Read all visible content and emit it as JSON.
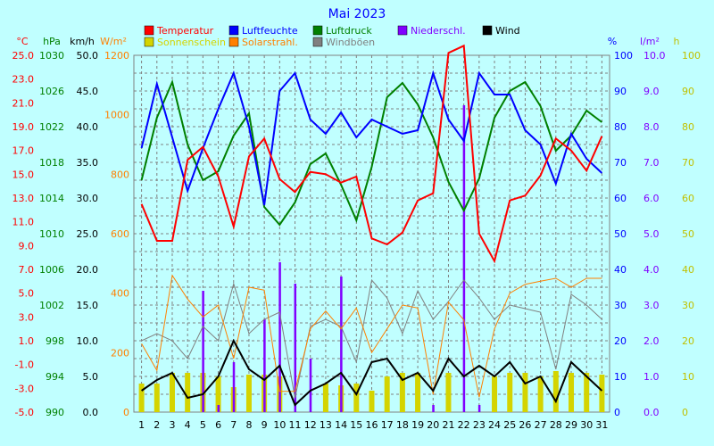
{
  "chart_data": {
    "type": "line",
    "title": "Mai 2023",
    "x": [
      1,
      2,
      3,
      4,
      5,
      6,
      7,
      8,
      9,
      10,
      11,
      12,
      13,
      14,
      15,
      16,
      17,
      18,
      19,
      20,
      21,
      22,
      23,
      24,
      25,
      26,
      27,
      28,
      29,
      30,
      31
    ],
    "x_ticks": [
      "1",
      "2",
      "3",
      "4",
      "5",
      "6",
      "7",
      "8",
      "9",
      "10",
      "11",
      "12",
      "13",
      "14",
      "15",
      "16",
      "17",
      "18",
      "19",
      "20",
      "21",
      "22",
      "23",
      "24",
      "25",
      "26",
      "27",
      "28",
      "29",
      "30",
      "31"
    ],
    "grid": true,
    "legend_position": "top",
    "axes": [
      {
        "key": "temp",
        "label": "°C",
        "min": -5,
        "max": 25,
        "ticks": [
          "-5.0",
          "-3.0",
          "-1.0",
          "1.0",
          "3.0",
          "5.0",
          "7.0",
          "9.0",
          "11.0",
          "13.0",
          "15.0",
          "17.0",
          "19.0",
          "21.0",
          "23.0",
          "25.0"
        ],
        "color": "#ff0000"
      },
      {
        "key": "pressure",
        "label": "hPa",
        "min": 990,
        "max": 1030,
        "ticks": [
          "990",
          "994",
          "998",
          "1002",
          "1006",
          "1010",
          "1014",
          "1018",
          "1022",
          "1026",
          "1030"
        ],
        "color": "#008000"
      },
      {
        "key": "wind",
        "label": "km/h",
        "min": 0,
        "max": 50,
        "ticks": [
          "0.0",
          "5.0",
          "10.0",
          "15.0",
          "20.0",
          "25.0",
          "30.0",
          "35.0",
          "40.0",
          "45.0",
          "50.0"
        ],
        "color": "#000000"
      },
      {
        "key": "solar",
        "label": "W/m²",
        "min": 0,
        "max": 1200,
        "ticks": [
          "0",
          "200",
          "400",
          "600",
          "800",
          "1000",
          "1200"
        ],
        "color": "#ff8000"
      },
      {
        "key": "humidity",
        "label": "%",
        "min": 0,
        "max": 100,
        "ticks": [
          "0",
          "10",
          "20",
          "30",
          "40",
          "50",
          "60",
          "70",
          "80",
          "90",
          "100"
        ],
        "color": "#0000ff"
      },
      {
        "key": "precip",
        "label": "l/m²",
        "min": 0,
        "max": 10,
        "ticks": [
          "0.0",
          "1.0",
          "2.0",
          "3.0",
          "4.0",
          "5.0",
          "6.0",
          "7.0",
          "8.0",
          "9.0",
          "10.0"
        ],
        "color": "#8000ff"
      },
      {
        "key": "sunshine",
        "label": "h",
        "min": 0,
        "max": 100,
        "ticks": [
          "0",
          "10",
          "20",
          "30",
          "40",
          "50",
          "60",
          "70",
          "80",
          "90",
          "100"
        ],
        "color": "#c0c000"
      }
    ],
    "series": [
      {
        "name": "Temperatur",
        "axis": "temp",
        "kind": "line",
        "color": "#ff0000",
        "values": [
          12.5,
          9.4,
          9.4,
          16.2,
          17.3,
          14.8,
          10.6,
          16.5,
          18.0,
          14.6,
          13.5,
          15.2,
          15.0,
          14.3,
          14.8,
          9.6,
          9.1,
          10.1,
          12.8,
          13.4,
          25.2,
          25.8,
          10.0,
          7.7,
          12.8,
          13.2,
          14.9,
          18.0,
          17.0,
          15.3,
          18.2
        ]
      },
      {
        "name": "Luftfeuchte",
        "axis": "humidity",
        "kind": "line",
        "color": "#0000ff",
        "values": [
          74,
          92,
          77,
          62,
          74,
          85,
          95,
          80,
          58,
          90,
          95,
          82,
          78,
          84,
          77,
          82,
          80,
          78,
          79,
          95,
          82,
          76,
          95,
          89,
          89,
          79,
          75,
          64,
          78,
          71,
          67
        ]
      },
      {
        "name": "Luftdruck",
        "axis": "pressure",
        "kind": "line",
        "color": "#008000",
        "values": [
          1016,
          1023,
          1027,
          1020,
          1016,
          1017,
          1021,
          1023.5,
          1013,
          1011,
          1013.5,
          1017.8,
          1019,
          1015.5,
          1011.5,
          1017.5,
          1025.3,
          1026.9,
          1024.5,
          1020.8,
          1015.8,
          1012.6,
          1016.2,
          1023,
          1026,
          1027,
          1024.3,
          1019.3,
          1021,
          1023.8,
          1022.5
        ]
      },
      {
        "name": "Niederschl.",
        "axis": "precip",
        "kind": "bar",
        "color": "#8000ff",
        "values": [
          0,
          0,
          0,
          0,
          3.4,
          0.2,
          1.4,
          0,
          2.6,
          4.2,
          3.6,
          1.5,
          0,
          3.8,
          0,
          0,
          0,
          0,
          0,
          0.2,
          0,
          8.6,
          0.2,
          0,
          0,
          0,
          0,
          0,
          0,
          0,
          0
        ]
      },
      {
        "name": "Wind",
        "axis": "wind",
        "kind": "line",
        "color": "#000000",
        "values": [
          3.0,
          4.5,
          5.5,
          2.0,
          2.5,
          5.0,
          10.0,
          6.0,
          4.5,
          6.5,
          1.0,
          3.0,
          4.0,
          5.5,
          2.5,
          7.0,
          7.5,
          4.5,
          5.5,
          3.0,
          7.5,
          5.0,
          6.5,
          5.0,
          7.0,
          4.0,
          5.0,
          1.5,
          7.0,
          5.0,
          3.0
        ]
      },
      {
        "name": "Sonnenschein",
        "axis": "sunshine",
        "kind": "bar",
        "color": "#d4d400",
        "values": [
          8,
          8,
          11,
          11,
          11,
          10,
          7,
          10.5,
          10.5,
          10,
          0,
          0,
          8,
          7.5,
          8,
          6,
          10,
          11,
          11,
          0,
          11,
          0,
          0,
          10,
          11,
          11,
          10,
          11.5,
          11,
          11,
          10.5
        ]
      },
      {
        "name": "Solarstrahl.",
        "axis": "solar",
        "kind": "line",
        "color": "#ff8000",
        "values": [
          230,
          140,
          460,
          380,
          320,
          360,
          180,
          420,
          410,
          70,
          70,
          280,
          340,
          280,
          350,
          200,
          280,
          360,
          350,
          60,
          370,
          310,
          50,
          280,
          400,
          430,
          440,
          450,
          420,
          450,
          450
        ]
      },
      {
        "name": "Windböen",
        "axis": "wind",
        "kind": "line",
        "color": "#808080",
        "values": [
          10,
          11,
          10,
          7.5,
          12,
          10,
          18,
          11,
          13,
          14,
          2,
          12,
          13,
          12,
          7,
          18.5,
          16,
          11,
          17,
          13,
          15.5,
          18.5,
          16,
          13,
          15,
          14.5,
          14,
          6,
          16.5,
          15,
          13
        ]
      }
    ]
  }
}
